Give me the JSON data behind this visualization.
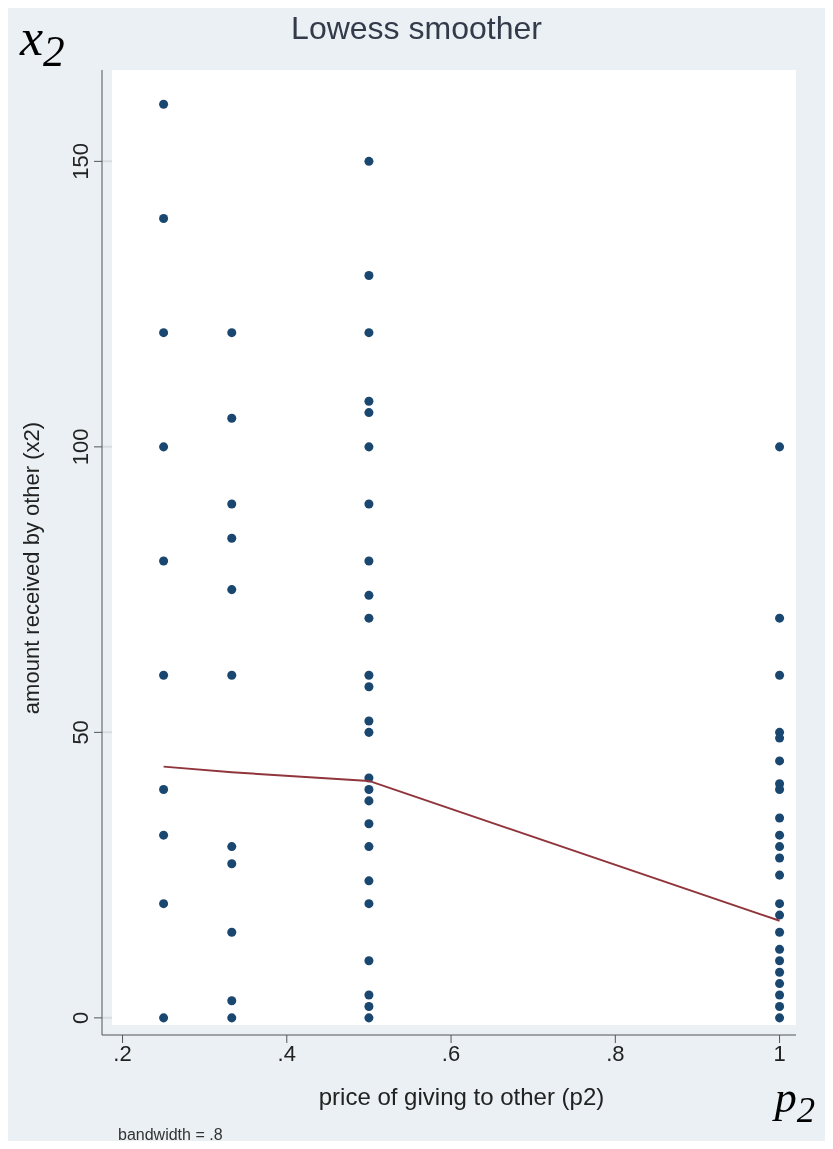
{
  "chart_data": {
    "type": "scatter",
    "title": "Lowess smoother",
    "xlabel": "price of giving to other (p2)",
    "ylabel": "amount received by other (x2)",
    "annotations": [
      "bandwidth = .8",
      "x$_{2}$",
      "p$_{2}$"
    ],
    "xlim": [
      0.175,
      1.02
    ],
    "ylim": [
      -3,
      166
    ],
    "xticks": [
      {
        "value": 0.2,
        "label": ".2"
      },
      {
        "value": 0.4,
        "label": ".4"
      },
      {
        "value": 0.6,
        "label": ".6"
      },
      {
        "value": 0.8,
        "label": ".8"
      },
      1
    ],
    "yticks": [
      0,
      50,
      100,
      150
    ],
    "grid": "y",
    "marker": "circle",
    "series": [
      {
        "color": "#1a476f",
        "x": [
          0.25,
          0.25,
          0.25,
          0.25,
          0.25,
          0.25,
          0.25,
          0.25,
          0.25,
          0.25,
          0.333,
          0.333,
          0.333,
          0.333,
          0.333,
          0.333,
          0.333,
          0.333,
          0.333,
          0.333,
          0.333,
          0.5,
          0.5,
          0.5,
          0.5,
          0.5,
          0.5,
          0.5,
          0.5,
          0.5,
          0.5,
          0.5,
          0.5,
          0.5,
          0.5,
          0.5,
          0.5,
          0.5,
          0.5,
          0.5,
          0.5,
          0.5,
          0.5,
          0.5,
          0.5,
          0.5,
          1,
          1,
          1,
          1,
          1,
          1,
          1,
          1,
          1,
          1,
          1,
          1,
          1,
          1,
          1,
          1,
          1,
          1,
          1,
          1,
          1,
          1,
          1
        ],
        "values": [
          160,
          140,
          120,
          100,
          80,
          60,
          40,
          32,
          20,
          0,
          120,
          105,
          90,
          84,
          75,
          60,
          30,
          27,
          15,
          3,
          0,
          150,
          130,
          120,
          108,
          106,
          100,
          90,
          80,
          74,
          70,
          60,
          58,
          52,
          50,
          42,
          40,
          38,
          34,
          30,
          24,
          20,
          10,
          4,
          2,
          0,
          100,
          70,
          60,
          50,
          49,
          45,
          41,
          40,
          35,
          32,
          30,
          28,
          25,
          20,
          18,
          15,
          12,
          10,
          8,
          6,
          4,
          2,
          0
        ]
      },
      {
        "type": "line",
        "marker": "none",
        "color": "#90353b",
        "x": [
          0.25,
          0.333,
          0.5,
          1
        ],
        "values": [
          44,
          43,
          41.5,
          17
        ]
      }
    ]
  }
}
